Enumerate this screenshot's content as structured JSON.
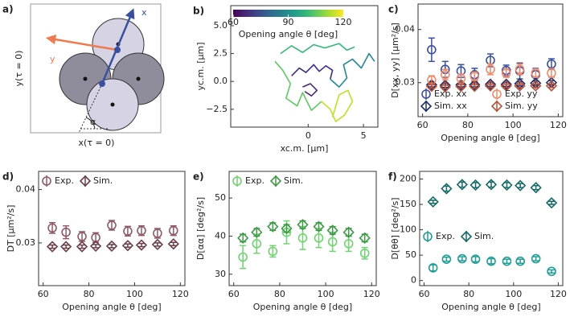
{
  "diagram": {
    "panel_label": "a)",
    "x_arrow": "x",
    "y_arrow": "y",
    "y_axis": "y(τ = 0)",
    "x_axis": "x(τ = 0)",
    "angle": "α"
  },
  "chart_data": [
    {
      "type": "line",
      "panel_label": "b)",
      "xlabel": "xc.m. [μm]",
      "ylabel": "yc.m. [μm]",
      "xlim": [
        -7,
        6.3
      ],
      "ylim": [
        -4.1,
        6.8
      ],
      "xticks": [
        0,
        5
      ],
      "yticks": [
        {
          "value": -2.5,
          "label": "−2.5"
        },
        {
          "value": 0,
          "label": "0.0"
        },
        2.5,
        {
          "value": 5,
          "label": "5.0"
        }
      ],
      "colorbar": {
        "cmap": "viridis",
        "lim": [
          60,
          120
        ],
        "ticks": [
          60,
          90,
          120
        ],
        "label": "Opening angle θ [deg]"
      },
      "series": [
        {
          "color": "#3e2c83",
          "x": [
            -1.5,
            -0.8,
            -0.2,
            0.5,
            1.0,
            1.6,
            2.2,
            2.0
          ],
          "y": [
            0.5,
            1.2,
            0.8,
            1.5,
            0.9,
            1.4,
            1.0,
            0.2
          ]
        },
        {
          "color": "#23898e",
          "x": [
            2.0,
            2.8,
            3.5,
            3.2,
            4.0,
            4.8,
            5.5,
            6.0
          ],
          "y": [
            0.2,
            -0.5,
            0.3,
            1.5,
            2.0,
            1.2,
            2.5,
            1.8
          ]
        },
        {
          "color": "#5ec962",
          "x": [
            -3,
            -2.3,
            -1.6,
            -2.0,
            -1.0,
            -0.5,
            0.3,
            1.2
          ],
          "y": [
            1.8,
            1.0,
            -0.2,
            -1.5,
            -2.2,
            -1.0,
            -2.6,
            -1.8
          ]
        },
        {
          "color": "#c2df23",
          "x": [
            1.2,
            2.0,
            2.5,
            3.3,
            4.0,
            3.6,
            2.8,
            2.2
          ],
          "y": [
            -1.8,
            -2.5,
            -3.6,
            -3.0,
            -1.8,
            -0.8,
            -1.2,
            -3.2
          ]
        },
        {
          "color": "#35b779",
          "x": [
            -2.5,
            -1.5,
            -0.5,
            0.5,
            1.5,
            2.8,
            3.5,
            4.2
          ],
          "y": [
            2.5,
            3.2,
            2.6,
            3.3,
            3.0,
            3.4,
            2.8,
            3.1
          ]
        },
        {
          "color": "#482878",
          "x": [
            -0.5,
            0.2,
            0.8,
            0.3,
            -0.3
          ],
          "y": [
            -0.5,
            -0.2,
            -0.8,
            -1.3,
            -0.9
          ]
        }
      ]
    },
    {
      "type": "errorbar",
      "panel_label": "c)",
      "xlabel": "Opening angle θ [deg]",
      "ylabel": "D[xx, yy] [μm²/s]",
      "xlim": [
        58,
        122
      ],
      "ylim": [
        0.0236,
        0.0448
      ],
      "xticks": [
        60,
        80,
        100,
        120
      ],
      "yticks": [
        0.03,
        0.04
      ],
      "legend": "lower right",
      "x": [
        64,
        70,
        77,
        83,
        90,
        97,
        103,
        110,
        117
      ],
      "series": [
        {
          "name": "Exp. xx",
          "color": "#3b4fa0",
          "marker": "circle",
          "values": [
            0.0362,
            0.0325,
            0.0322,
            0.0315,
            0.0342,
            0.0323,
            0.0322,
            0.0315,
            0.0335
          ],
          "errors": [
            0.0022,
            0.0015,
            0.0012,
            0.0012,
            0.0012,
            0.001,
            0.0015,
            0.0012,
            0.001
          ]
        },
        {
          "name": "Sim. xx",
          "color": "#1d2f6b",
          "marker": "diamond",
          "values": [
            0.0296,
            0.0295,
            0.0296,
            0.0296,
            0.0297,
            0.0297,
            0.0298,
            0.0299,
            0.03
          ],
          "errors": [
            0.0004,
            0.0004,
            0.0004,
            0.0004,
            0.0004,
            0.0004,
            0.0004,
            0.0004,
            0.0004
          ]
        },
        {
          "name": "Exp. yy",
          "color": "#f08a6a",
          "marker": "circle",
          "values": [
            0.0305,
            0.0315,
            0.0308,
            0.0312,
            0.0325,
            0.0318,
            0.0325,
            0.0318,
            0.0318
          ],
          "errors": [
            0.0008,
            0.001,
            0.0008,
            0.0008,
            0.001,
            0.0008,
            0.001,
            0.0008,
            0.0008
          ]
        },
        {
          "name": "Sim. yy",
          "color": "#b5533c",
          "marker": "diamond",
          "values": [
            0.0293,
            0.0292,
            0.0293,
            0.0293,
            0.0294,
            0.0294,
            0.0294,
            0.0294,
            0.0294
          ],
          "errors": [
            0.0003,
            0.0003,
            0.0003,
            0.0003,
            0.0003,
            0.0003,
            0.0003,
            0.0003,
            0.0003
          ]
        }
      ]
    },
    {
      "type": "errorbar",
      "panel_label": "d)",
      "xlabel": "Opening angle θ [deg]",
      "ylabel": "DT [μm²/s]",
      "xlim": [
        58,
        122
      ],
      "ylim": [
        0.022,
        0.0434
      ],
      "xticks": [
        60,
        80,
        100,
        120
      ],
      "yticks": [
        0.03,
        0.04
      ],
      "legend": "upper left",
      "x": [
        64,
        70,
        77,
        83,
        90,
        97,
        103,
        110,
        117
      ],
      "series": [
        {
          "name": "Exp.",
          "color": "#8f5a66",
          "marker": "circle",
          "values": [
            0.0328,
            0.032,
            0.0312,
            0.031,
            0.0333,
            0.0322,
            0.0323,
            0.0318,
            0.0323
          ],
          "errors": [
            0.001,
            0.0012,
            0.0009,
            0.0009,
            0.0009,
            0.0009,
            0.0009,
            0.0009,
            0.0009
          ]
        },
        {
          "name": "Sim.",
          "color": "#6b3f4a",
          "marker": "diamond",
          "values": [
            0.0293,
            0.0293,
            0.0293,
            0.0294,
            0.0294,
            0.0295,
            0.0296,
            0.0297,
            0.0298
          ],
          "errors": [
            0.0003,
            0.0003,
            0.0003,
            0.0003,
            0.0003,
            0.0003,
            0.0003,
            0.0003,
            0.0003
          ]
        }
      ]
    },
    {
      "type": "errorbar",
      "panel_label": "e)",
      "xlabel": "Opening angle θ [deg]",
      "ylabel": "D[αα] [deg²/s]",
      "xlim": [
        58,
        122
      ],
      "ylim": [
        27,
        57
      ],
      "xticks": [
        60,
        80,
        100,
        120
      ],
      "yticks": [
        30,
        40,
        50
      ],
      "legend": "upper left",
      "x": [
        64,
        70,
        77,
        83,
        90,
        97,
        103,
        110,
        117
      ],
      "series": [
        {
          "name": "Exp.",
          "color": "#6fd36f",
          "marker": "circle",
          "values": [
            34.5,
            38,
            36,
            41,
            39.5,
            39.5,
            38.5,
            38,
            35.5
          ],
          "errors": [
            3,
            2.5,
            1.5,
            3,
            3,
            2.5,
            2.5,
            2,
            1.5
          ]
        },
        {
          "name": "Sim.",
          "color": "#3f9a46",
          "marker": "diamond",
          "values": [
            39.5,
            41,
            42.5,
            42,
            43,
            42.5,
            41.5,
            41,
            39.5
          ],
          "errors": [
            1,
            1,
            1,
            1,
            1,
            1,
            1,
            1,
            1
          ]
        }
      ]
    },
    {
      "type": "errorbar",
      "panel_label": "f)",
      "xlabel": "Opening angle θ [deg]",
      "ylabel": "D[θθ] [deg²/s]",
      "xlim": [
        58,
        122
      ],
      "ylim": [
        -10,
        215
      ],
      "xticks": [
        60,
        80,
        100,
        120
      ],
      "yticks": [
        0,
        50,
        100,
        150,
        200
      ],
      "legend": "center left",
      "x": [
        64,
        70,
        77,
        83,
        90,
        97,
        103,
        110,
        117
      ],
      "series": [
        {
          "name": "Exp.",
          "color": "#1f9e95",
          "marker": "circle",
          "values": [
            25,
            42,
            43,
            42,
            38,
            38,
            38,
            43,
            18
          ],
          "errors": [
            6,
            4,
            4,
            5,
            5,
            4,
            4,
            4,
            3
          ]
        },
        {
          "name": "Sim.",
          "color": "#146b66",
          "marker": "diamond",
          "values": [
            155,
            181,
            189,
            188,
            189,
            188,
            187,
            183,
            153
          ],
          "errors": [
            3,
            5,
            5,
            5,
            5,
            5,
            4,
            4,
            3
          ]
        }
      ]
    }
  ]
}
